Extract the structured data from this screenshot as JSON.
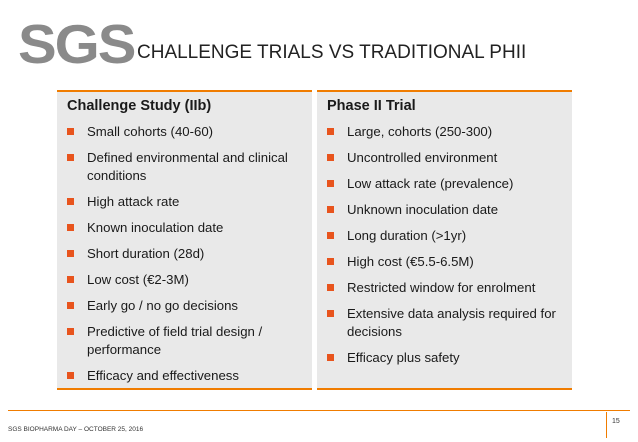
{
  "header": {
    "logo": "SGS",
    "title": "CHALLENGE TRIALS VS TRADITIONAL PHII"
  },
  "columns": [
    {
      "heading": "Challenge Study (IIb)",
      "items": [
        "Small cohorts (40-60)",
        "Defined environmental and clinical conditions",
        "High attack rate",
        "Known inoculation date",
        "Short duration (28d)",
        "Low cost (€2-3M)",
        "Early go / no go decisions",
        "Predictive of field trial design / performance",
        "Efficacy and effectiveness"
      ]
    },
    {
      "heading": "Phase II Trial",
      "items": [
        "Large, cohorts (250-300)",
        "Uncontrolled environment",
        "Low attack rate (prevalence)",
        "Unknown inoculation date",
        "Long duration (>1yr)",
        "High cost (€5.5-6.5M)",
        "Restricted window for enrolment",
        "Extensive data analysis required for decisions",
        "Efficacy plus safety"
      ]
    }
  ],
  "footer": {
    "text": "SGS BIOPHARMA DAY – OCTOBER 25, 2016",
    "page": "15"
  }
}
